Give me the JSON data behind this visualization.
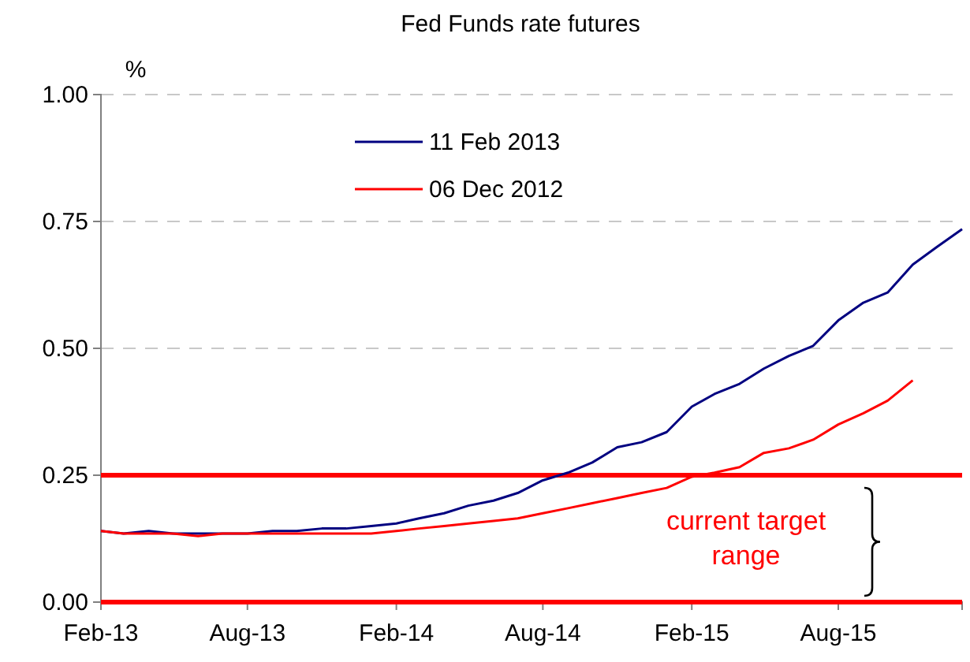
{
  "chart_data": {
    "type": "line",
    "title": "Fed Funds rate futures",
    "ylabel": "%",
    "x": [
      "2013-02",
      "2013-03",
      "2013-04",
      "2013-05",
      "2013-06",
      "2013-07",
      "2013-08",
      "2013-09",
      "2013-10",
      "2013-11",
      "2013-12",
      "2014-01",
      "2014-02",
      "2014-03",
      "2014-04",
      "2014-05",
      "2014-06",
      "2014-07",
      "2014-08",
      "2014-09",
      "2014-10",
      "2014-11",
      "2014-12",
      "2015-01",
      "2015-02",
      "2015-03",
      "2015-04",
      "2015-05",
      "2015-06",
      "2015-07",
      "2015-08",
      "2015-09",
      "2015-10",
      "2015-11",
      "2015-12",
      "2016-01"
    ],
    "series": [
      {
        "name": "11 Feb 2013",
        "color": "#000080",
        "values": [
          0.14,
          0.135,
          0.14,
          0.135,
          0.135,
          0.135,
          0.135,
          0.14,
          0.14,
          0.145,
          0.145,
          0.15,
          0.155,
          0.165,
          0.175,
          0.19,
          0.2,
          0.215,
          0.24,
          0.255,
          0.275,
          0.305,
          0.315,
          0.335,
          0.385,
          0.41,
          0.43,
          0.46,
          0.485,
          0.505,
          0.555,
          0.59,
          0.61,
          0.665,
          0.7,
          0.735
        ]
      },
      {
        "name": "06 Dec 2012",
        "color": "#ff0000",
        "values": [
          0.14,
          0.135,
          0.135,
          0.135,
          0.13,
          0.135,
          0.135,
          0.135,
          0.135,
          0.135,
          0.135,
          0.135,
          0.14,
          0.145,
          0.15,
          0.155,
          0.16,
          0.165,
          0.175,
          0.185,
          0.195,
          0.205,
          0.215,
          0.225,
          0.247,
          0.255,
          0.266,
          0.294,
          0.303,
          0.32,
          0.35,
          0.372,
          0.397,
          0.437,
          null,
          null
        ]
      }
    ],
    "xlim": [
      "2013-02",
      "2016-01"
    ],
    "xticks": [
      {
        "value": "2013-02",
        "label": "Feb-13"
      },
      {
        "value": "2013-08",
        "label": "Aug-13"
      },
      {
        "value": "2014-02",
        "label": "Feb-14"
      },
      {
        "value": "2014-08",
        "label": "Aug-14"
      },
      {
        "value": "2015-02",
        "label": "Feb-15"
      },
      {
        "value": "2015-08",
        "label": "Aug-15"
      }
    ],
    "ylim": [
      0,
      1
    ],
    "yticks": [
      {
        "value": 0,
        "label": "0.00"
      },
      {
        "value": 0.25,
        "label": "0.25"
      },
      {
        "value": 0.5,
        "label": "0.50"
      },
      {
        "value": 0.75,
        "label": "0.75"
      },
      {
        "value": 1,
        "label": "1.00"
      }
    ],
    "grid": "y",
    "legend": "top",
    "line_style": "solid",
    "ref_lines": [
      {
        "axis": "y",
        "value": 0.25,
        "color": "#ff0000"
      },
      {
        "axis": "y",
        "value": 0,
        "color": "#ff0000"
      }
    ],
    "annotations": [
      "current target range"
    ]
  }
}
